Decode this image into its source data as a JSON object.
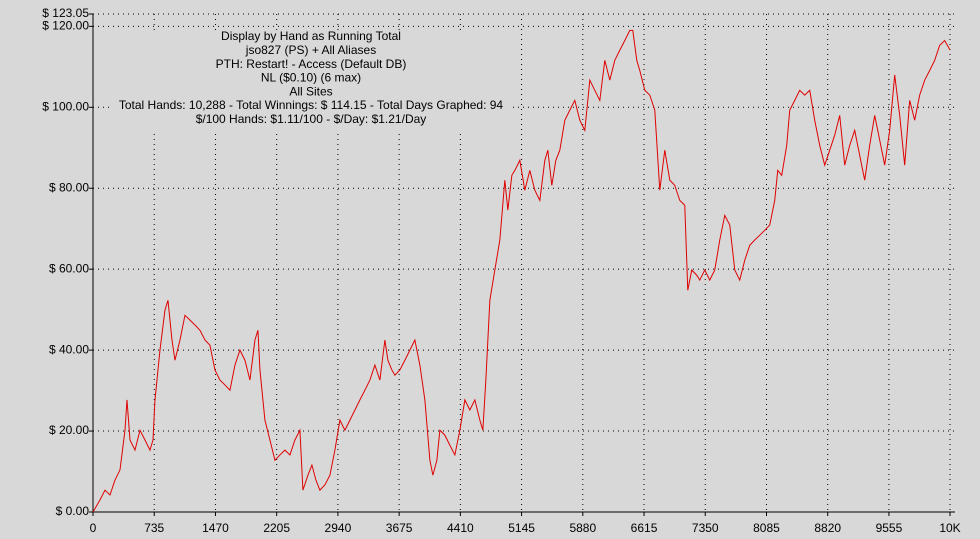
{
  "chart_data": {
    "type": "line",
    "title_lines": [
      "Display by Hand as Running Total",
      "jso827 (PS) + All Aliases",
      "PTH: Restart! - Access (Default DB)",
      "NL ($0.10) (6 max)",
      "All Sites",
      "Total Hands: 10,288 - Total Winnings: $ 114.15 - Total Days Graphed: 94",
      "$/100 Hands: $1.11/100 - $/Day: $1.21/Day"
    ],
    "x": [
      0,
      84,
      144,
      204,
      264,
      324,
      384,
      408,
      444,
      504,
      564,
      624,
      684,
      720,
      744,
      804,
      864,
      900,
      948,
      984,
      1044,
      1104,
      1164,
      1224,
      1284,
      1344,
      1404,
      1464,
      1524,
      1584,
      1644,
      1704,
      1764,
      1824,
      1884,
      1944,
      1980,
      2004,
      2064,
      2124,
      2184,
      2244,
      2304,
      2364,
      2424,
      2484,
      2520,
      2580,
      2628,
      2676,
      2724,
      2784,
      2844,
      2904,
      2964,
      3024,
      3084,
      3144,
      3204,
      3264,
      3324,
      3384,
      3444,
      3504,
      3540,
      3588,
      3624,
      3684,
      3744,
      3804,
      3864,
      3924,
      3984,
      4044,
      4080,
      4128,
      4164,
      4224,
      4284,
      4344,
      4404,
      4464,
      4524,
      4584,
      4644,
      4680,
      4716,
      4764,
      4824,
      4884,
      4944,
      4980,
      5028,
      5064,
      5124,
      5184,
      5244,
      5304,
      5364,
      5424,
      5460,
      5508,
      5556,
      5604,
      5664,
      5724,
      5784,
      5844,
      5904,
      5964,
      6024,
      6084,
      6144,
      6204,
      6264,
      6324,
      6384,
      6444,
      6480,
      6528,
      6564,
      6624,
      6684,
      6744,
      6804,
      6864,
      6924,
      6984,
      7044,
      7104,
      7140,
      7188,
      7248,
      7284,
      7344,
      7404,
      7464,
      7524,
      7584,
      7644,
      7704,
      7764,
      7824,
      7884,
      7944,
      8004,
      8064,
      8124,
      8184,
      8220,
      8268,
      8328,
      8364,
      8424,
      8484,
      8544,
      8604,
      8664,
      8724,
      8784,
      8844,
      8904,
      8964,
      9024,
      9084,
      9144,
      9204,
      9264,
      9324,
      9384,
      9444,
      9504,
      9564,
      9624,
      9684,
      9744,
      9804,
      9864,
      9924,
      9984,
      10044,
      10104,
      10164,
      10224,
      10288
    ],
    "series": [
      {
        "color": "#e00000",
        "values": [
          0,
          3.0,
          5.4,
          4.2,
          7.9,
          10.4,
          20.2,
          27.7,
          17.8,
          15.3,
          20.2,
          17.8,
          15.3,
          17.8,
          27.7,
          40.0,
          49.9,
          52.3,
          42.5,
          37.5,
          42.5,
          48.6,
          47.4,
          46.2,
          44.9,
          42.5,
          41.2,
          35.1,
          32.6,
          31.4,
          30.1,
          36.3,
          40.0,
          37.5,
          32.6,
          42.5,
          44.9,
          35.1,
          22.7,
          17.8,
          12.8,
          14.1,
          15.3,
          14.1,
          17.8,
          20.2,
          5.4,
          9.1,
          11.6,
          7.9,
          5.4,
          6.7,
          9.1,
          15.3,
          22.7,
          20.2,
          22.7,
          25.2,
          27.7,
          30.1,
          32.6,
          36.3,
          32.6,
          42.5,
          37.5,
          35.1,
          33.8,
          35.1,
          37.5,
          40.0,
          42.5,
          36.3,
          27.7,
          12.8,
          9.1,
          12.8,
          20.2,
          19.0,
          16.5,
          14.1,
          20.2,
          27.7,
          25.2,
          27.7,
          22.7,
          20.2,
          32.6,
          52.3,
          59.8,
          67.2,
          82.0,
          74.6,
          83.2,
          84.4,
          86.9,
          79.5,
          84.4,
          79.5,
          77.0,
          86.9,
          89.4,
          80.7,
          86.9,
          89.4,
          96.8,
          99.3,
          101.7,
          96.8,
          94.3,
          106.7,
          104.2,
          101.7,
          111.6,
          106.7,
          111.6,
          114.1,
          116.5,
          119.0,
          119.0,
          111.6,
          109.1,
          104.2,
          103.0,
          99.3,
          79.5,
          89.4,
          82.0,
          80.7,
          77.0,
          75.8,
          54.8,
          59.8,
          58.5,
          57.3,
          59.8,
          57.3,
          59.8,
          67.2,
          73.3,
          70.9,
          59.8,
          57.3,
          62.2,
          65.9,
          67.2,
          68.4,
          69.6,
          70.9,
          77.0,
          84.4,
          83.2,
          90.6,
          99.3,
          101.7,
          104.2,
          103.0,
          104.2,
          96.8,
          90.6,
          85.7,
          89.4,
          93.1,
          98.0,
          85.7,
          90.6,
          94.3,
          88.1,
          82.0,
          90.6,
          98.0,
          91.9,
          85.7,
          94.3,
          108.0,
          98.0,
          85.7,
          101.7,
          96.8,
          103.0,
          106.7,
          109.1,
          111.6,
          115.3,
          116.5,
          114.15
        ]
      }
    ],
    "xlim": [
      0,
      10288
    ],
    "xticks": [
      0,
      735,
      1470,
      2205,
      2940,
      3675,
      4410,
      5145,
      5880,
      6615,
      7350,
      8085,
      8820,
      9555,
      {
        "value": 10288,
        "label": "10K"
      }
    ],
    "ylim": [
      0,
      123.05
    ],
    "yticks": [
      {
        "value": 0,
        "label": "$ 0.00"
      },
      {
        "value": 20,
        "label": "$ 20.00"
      },
      {
        "value": 40,
        "label": "$ 40.00"
      },
      {
        "value": 60,
        "label": "$ 60.00"
      },
      {
        "value": 80,
        "label": "$ 80.00"
      },
      {
        "value": 100,
        "label": "$ 100.00"
      },
      {
        "value": 120,
        "label": "$ 120.00"
      },
      {
        "value": 123.05,
        "label": "$ 123.05"
      }
    ],
    "grid": true
  }
}
